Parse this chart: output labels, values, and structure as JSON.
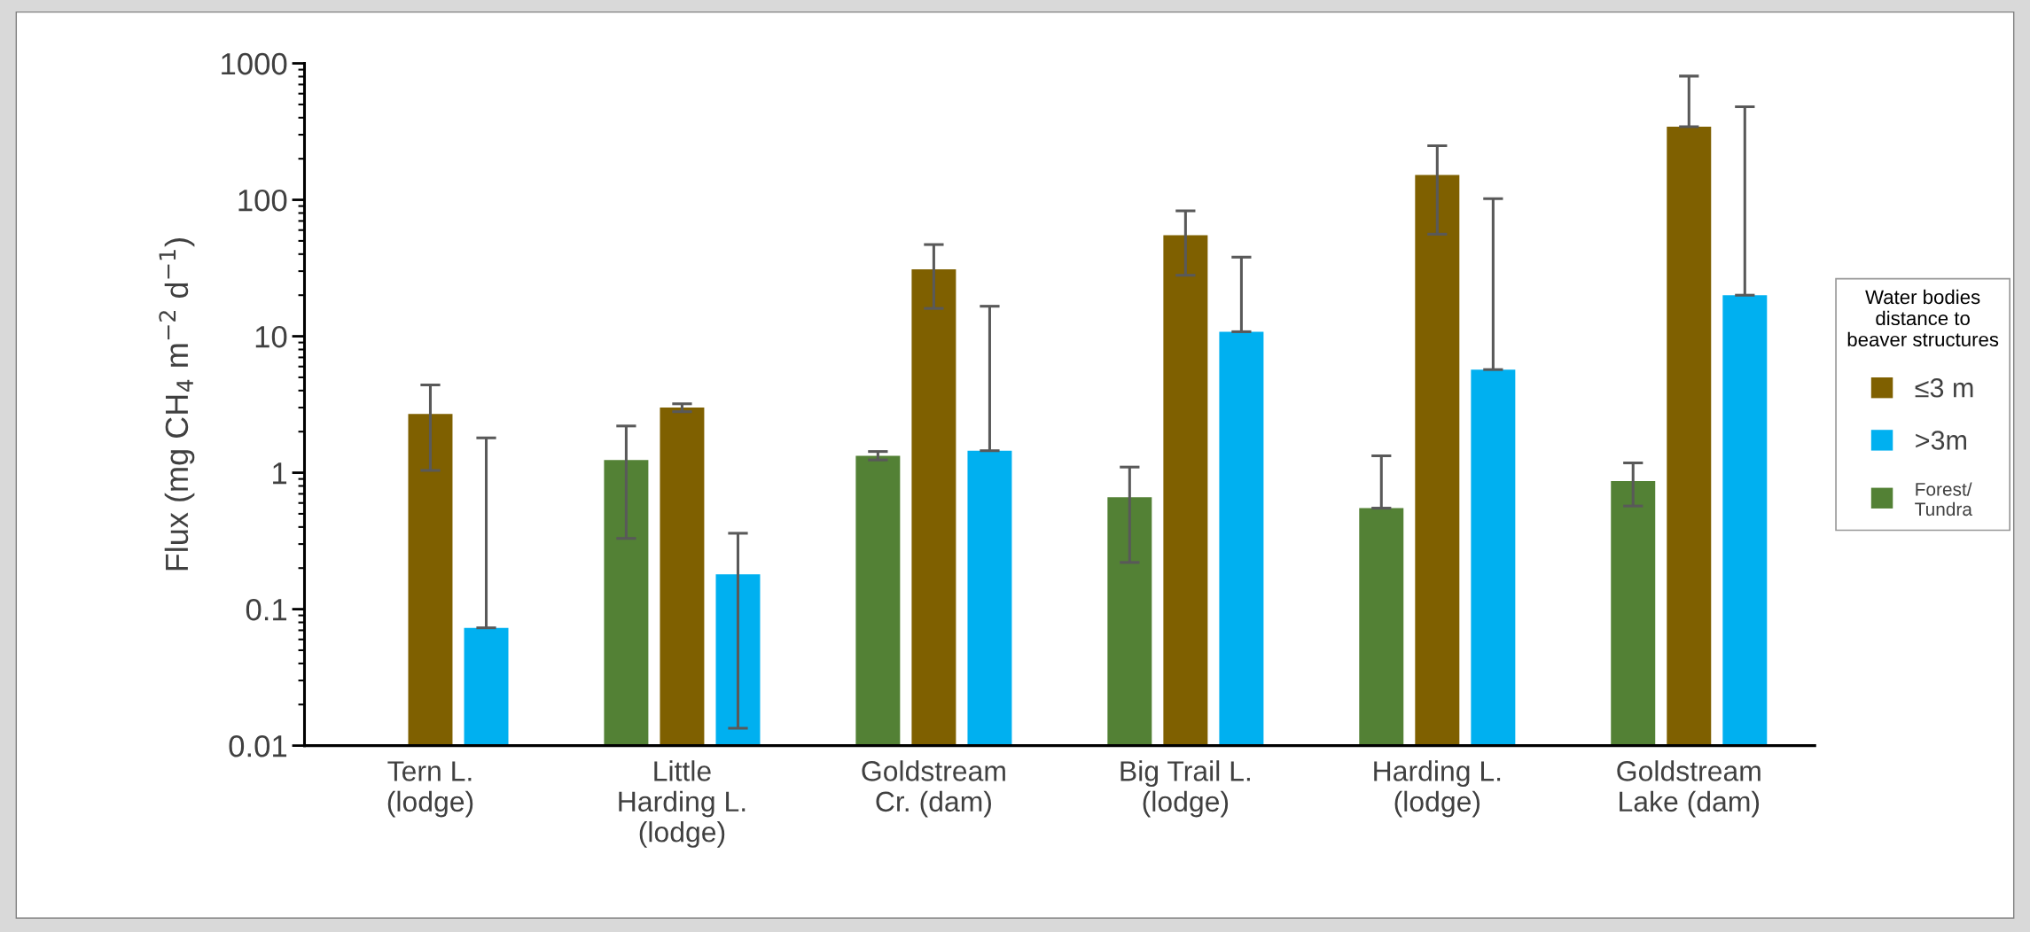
{
  "chart_data": {
    "type": "bar",
    "categories": [
      "Tern L.\n(lodge)",
      "Little\nHarding L.\n(lodge)",
      "Goldstream\nCr. (dam)",
      "Big Trail L.\n(lodge)",
      "Harding L.\n(lodge)",
      "Goldstream\nLake (dam)"
    ],
    "ylabel": "Flux (mg CH$_{4}$ m$^{−2}$ d$^{−1}$)",
    "log": "y",
    "ylim": [
      0.01,
      1000
    ],
    "yticks": [
      0.01,
      0.1,
      1,
      10,
      100,
      1000
    ],
    "legend": "right",
    "legend_title": "Water bodies\ndistance to\nbeaver structures",
    "grid": false,
    "series": [
      {
        "name": "Forest/\nTundra",
        "color": "#538135",
        "values": [
          0.01,
          1.24,
          1.33,
          0.66,
          0.55,
          0.87
        ],
        "errors": [
          null,
          [
            0.33,
            2.2
          ],
          [
            1.24,
            1.43
          ],
          [
            0.22,
            1.1
          ],
          [
            0.55,
            1.33
          ],
          [
            0.57,
            1.18
          ]
        ]
      },
      {
        "name": "≤3 m",
        "color": "#7f6000",
        "values": [
          2.7,
          3.0,
          31,
          55,
          152,
          344
        ],
        "errors": [
          [
            1.04,
            4.4
          ],
          [
            2.8,
            3.2
          ],
          [
            16,
            47
          ],
          [
            28,
            83
          ],
          [
            56,
            249
          ],
          [
            344,
            807
          ]
        ]
      },
      {
        "name": ">3m",
        "color": "#00b0f0",
        "values": [
          0.073,
          0.18,
          1.45,
          10.8,
          5.7,
          20
        ],
        "errors": [
          [
            0.073,
            1.8
          ],
          [
            0.0134,
            0.36
          ],
          [
            1.45,
            16.6
          ],
          [
            10.8,
            38
          ],
          [
            5.7,
            102
          ],
          [
            20,
            481
          ]
        ]
      }
    ]
  }
}
